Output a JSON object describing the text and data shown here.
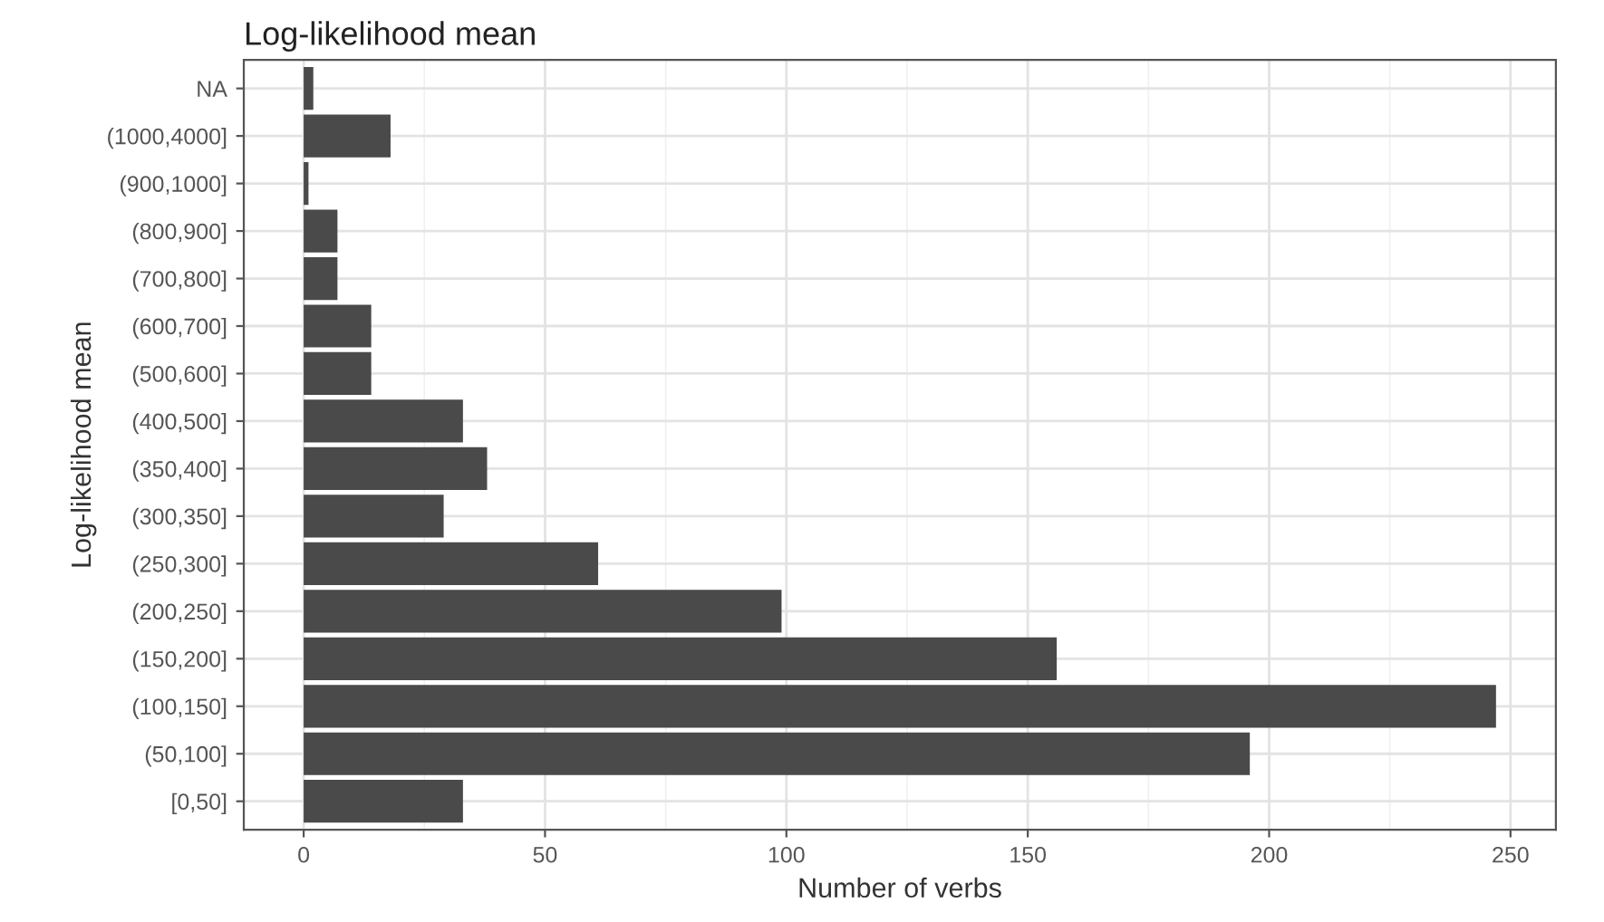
{
  "chart_data": {
    "type": "bar",
    "orientation": "horizontal",
    "title": "Log-likelihood mean",
    "xlabel": "Number of verbs",
    "ylabel": "Log-likelihood mean",
    "categories": [
      "NA",
      "(1000,4000]",
      "(900,1000]",
      "(800,900]",
      "(700,800]",
      "(600,700]",
      "(500,600]",
      "(400,500]",
      "(350,400]",
      "(300,350]",
      "(250,300]",
      "(200,250]",
      "(150,200]",
      "(100,150]",
      "(50,100]",
      "[0,50]"
    ],
    "values": [
      2,
      18,
      1,
      7,
      7,
      14,
      14,
      33,
      38,
      29,
      61,
      99,
      156,
      247,
      196,
      33
    ],
    "color": "#4a4a4a",
    "xlim": [
      -12.4,
      259.4
    ],
    "xticks": [
      0,
      50,
      100,
      150,
      200,
      250
    ],
    "grid": true
  }
}
